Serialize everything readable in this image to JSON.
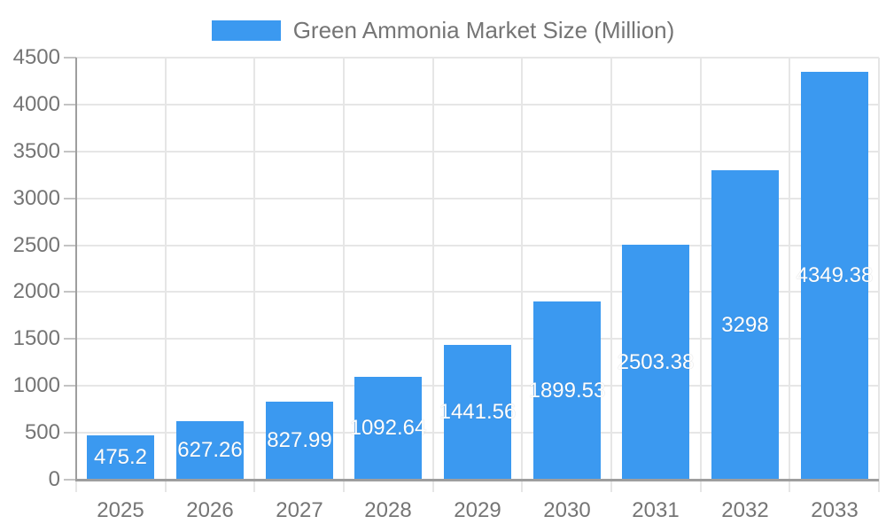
{
  "legend": {
    "label": "Green Ammonia Market Size (Million)",
    "swatch_color": "#3b99f0"
  },
  "chart_data": {
    "type": "bar",
    "title": "Green Ammonia Market Size (Million)",
    "categories": [
      "2025",
      "2026",
      "2027",
      "2028",
      "2029",
      "2030",
      "2031",
      "2032",
      "2033"
    ],
    "values": [
      475.2,
      627.26,
      827.99,
      1092.64,
      1441.56,
      1899.53,
      2503.38,
      3298,
      4349.38
    ],
    "value_labels": [
      "475.2",
      "627.26",
      "827.99",
      "1092.64",
      "1441.56",
      "1899.53",
      "2503.38",
      "3298",
      "4349.38"
    ],
    "xlabel": "",
    "ylabel": "",
    "ylim": [
      0,
      4500
    ],
    "y_tick_step": 500,
    "y_tick_labels": [
      "0",
      "500",
      "1000",
      "1500",
      "2000",
      "2500",
      "3000",
      "3500",
      "4000",
      "4500"
    ],
    "grid": true,
    "legend_position": "top",
    "bar_color": "#3b99f0",
    "value_label_color": "#ffffff",
    "axis_text_color": "#757575",
    "gridline_color": "#e6e6e6",
    "axis_line_color": "#9e9e9e"
  }
}
